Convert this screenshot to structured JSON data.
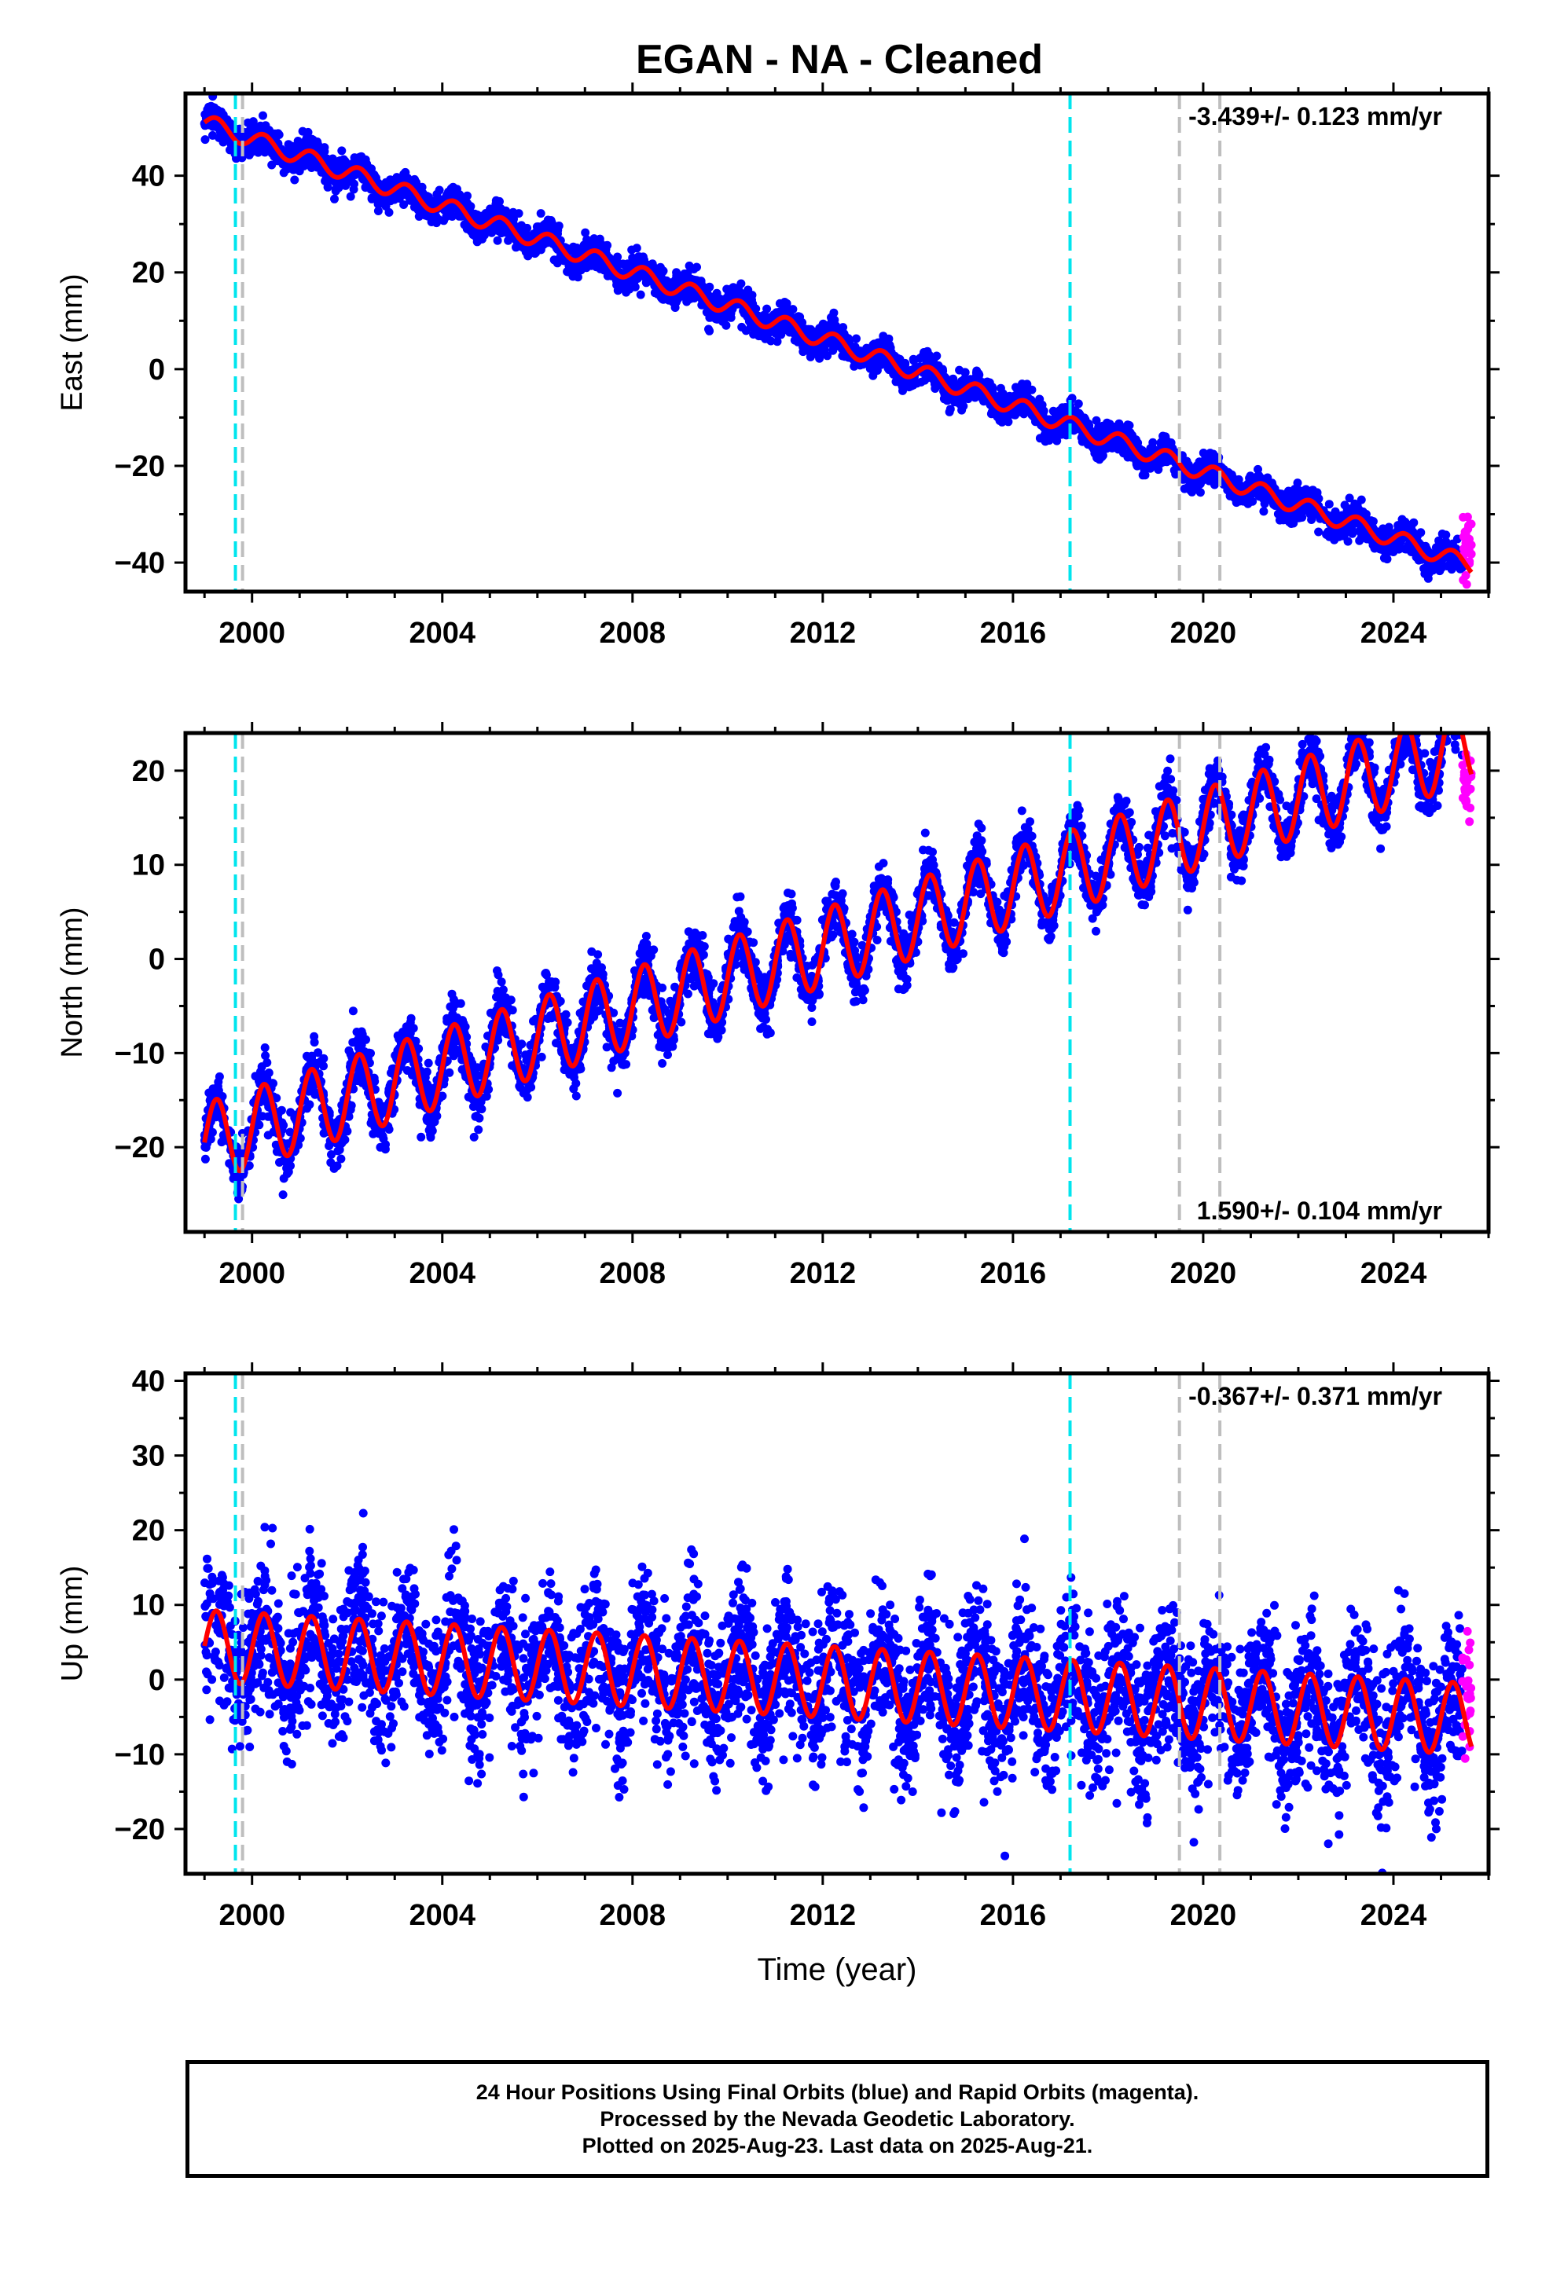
{
  "title": "EGAN  - NA - Cleaned",
  "footer": {
    "line1": "24 Hour Positions Using Final Orbits (blue) and Rapid Orbits (magenta).",
    "line2": "Processed by the Nevada Geodetic Laboratory.",
    "line3": "Plotted on 2025-Aug-23. Last data on 2025-Aug-21."
  },
  "colors": {
    "final_orbits": "#0000ff",
    "rapid_orbits": "#ff00ff",
    "model": "#ff0000",
    "equipment_change": "#00e5ee",
    "other_event": "#bebebe"
  },
  "chart_data": [
    {
      "type": "scatter",
      "panel": "east",
      "ylabel": "East (mm)",
      "xlabel": "",
      "xlim": [
        1998.6,
        2026.0
      ],
      "ylim": [
        -46,
        57
      ],
      "xticks": [
        2000,
        2004,
        2008,
        2012,
        2016,
        2020,
        2024
      ],
      "yticks": [
        -40,
        -20,
        0,
        20,
        40
      ],
      "rate_label": "-3.439+/- 0.123 mm/yr",
      "rate_position": "top-right",
      "vlines_cyan": [
        1999.65,
        2017.2
      ],
      "vlines_gray": [
        1999.8,
        2019.5,
        2020.35
      ],
      "series": [
        {
          "name": "Final Orbits",
          "color": "#0000ff",
          "start": 1999.0,
          "end": 2025.45,
          "start_value": 51,
          "rate": -3.439,
          "annual_amp": 1.8,
          "noise": 1.6
        },
        {
          "name": "Rapid Orbits",
          "color": "#ff00ff",
          "start": 2025.45,
          "end": 2025.64,
          "start_value": -37,
          "rate": -3.439,
          "annual_amp": 0,
          "noise": 3.5
        },
        {
          "name": "Model",
          "color": "#ff0000",
          "start": 1999.0,
          "end": 2025.64,
          "start_value": 51,
          "rate": -3.439,
          "annual_amp": 1.8
        }
      ]
    },
    {
      "type": "scatter",
      "panel": "north",
      "ylabel": "North (mm)",
      "xlabel": "",
      "xlim": [
        1998.6,
        2026.0
      ],
      "ylim": [
        -29,
        24
      ],
      "xticks": [
        2000,
        2004,
        2008,
        2012,
        2016,
        2020,
        2024
      ],
      "yticks": [
        -20,
        -10,
        0,
        10,
        20
      ],
      "rate_label": "1.590+/- 0.104 mm/yr",
      "rate_position": "bottom-right",
      "vlines_cyan": [
        1999.65,
        2017.2
      ],
      "vlines_gray": [
        1999.8,
        2019.5,
        2020.35
      ],
      "series": [
        {
          "name": "Final Orbits",
          "color": "#0000ff",
          "start": 1999.0,
          "end": 2025.45,
          "start_value": -19.5,
          "rate": 1.59,
          "annual_amp": 4.2,
          "noise": 1.5
        },
        {
          "name": "Rapid Orbits",
          "color": "#ff00ff",
          "start": 2025.45,
          "end": 2025.64,
          "start_value": 19,
          "rate": 1.59,
          "annual_amp": 0,
          "noise": 2.0
        },
        {
          "name": "Model",
          "color": "#ff0000",
          "start": 1999.0,
          "end": 2025.64,
          "start_value": -19.5,
          "rate": 1.59,
          "annual_amp": 4.2
        }
      ]
    },
    {
      "type": "scatter",
      "panel": "up",
      "ylabel": "Up (mm)",
      "xlabel": "Time (year)",
      "xlim": [
        1998.6,
        2026.0
      ],
      "ylim": [
        -26,
        41
      ],
      "xticks": [
        2000,
        2004,
        2008,
        2012,
        2016,
        2020,
        2024
      ],
      "yticks": [
        -20,
        -10,
        0,
        10,
        20,
        30,
        40
      ],
      "rate_label": "-0.367+/- 0.371 mm/yr",
      "rate_position": "top-right",
      "vlines_cyan": [
        1999.65,
        2017.2
      ],
      "vlines_gray": [
        1999.8,
        2019.5,
        2020.35
      ],
      "series": [
        {
          "name": "Final Orbits",
          "color": "#0000ff",
          "start": 1999.0,
          "end": 2025.45,
          "start_value": 4.5,
          "rate": -0.367,
          "annual_amp": 4.8,
          "noise": 5.0
        },
        {
          "name": "Rapid Orbits",
          "color": "#ff00ff",
          "start": 2025.45,
          "end": 2025.64,
          "start_value": -1,
          "rate": -0.367,
          "annual_amp": 0,
          "noise": 4.5
        },
        {
          "name": "Model",
          "color": "#ff0000",
          "start": 1999.0,
          "end": 2025.64,
          "start_value": 4.5,
          "rate": -0.367,
          "annual_amp": 4.8
        }
      ]
    }
  ]
}
